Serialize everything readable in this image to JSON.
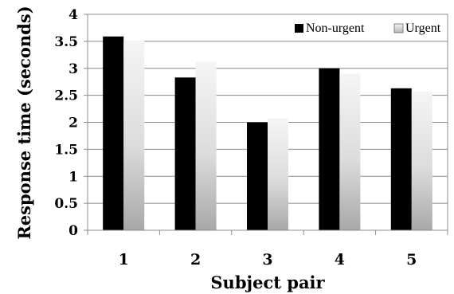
{
  "chart_data": {
    "type": "bar",
    "title": "",
    "xlabel": "Subject pair",
    "ylabel": "Response time (seconds)",
    "categories": [
      "1",
      "2",
      "3",
      "4",
      "5"
    ],
    "ylim": [
      0,
      4
    ],
    "yticks": [
      "0",
      "0.5",
      "1",
      "1.5",
      "2",
      "2.5",
      "3",
      "3.5",
      "4"
    ],
    "grid": true,
    "legend_position": "top-right",
    "series": [
      {
        "name": "Non-urgent",
        "color": "#000000",
        "values": [
          3.59,
          2.83,
          2.0,
          3.0,
          2.63
        ]
      },
      {
        "name": "Urgent",
        "color": "#d9d9d9",
        "values": [
          3.51,
          3.12,
          2.07,
          2.9,
          2.57
        ]
      }
    ]
  }
}
